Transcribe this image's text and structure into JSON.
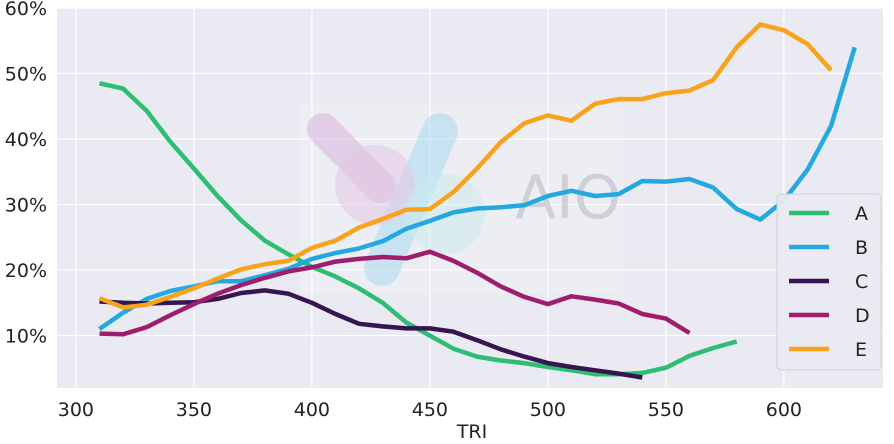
{
  "chart_data": {
    "type": "line",
    "title": "",
    "xlabel": "TRI",
    "ylabel": "",
    "xlim": [
      292,
      642
    ],
    "ylim": [
      0.02,
      0.6
    ],
    "x_ticks": [
      300,
      350,
      400,
      450,
      500,
      550,
      600
    ],
    "x_tick_labels": [
      "300",
      "350",
      "400",
      "450",
      "500",
      "550",
      "600"
    ],
    "y_ticks": [
      0.1,
      0.2,
      0.3,
      0.4,
      0.5,
      0.6
    ],
    "y_tick_labels": [
      "10%",
      "20%",
      "30%",
      "40%",
      "50%",
      "60%"
    ],
    "grid": true,
    "background_color": "#eaeaf2",
    "legend_position": "right",
    "watermark": "AIO",
    "series": [
      {
        "name": "A",
        "color": "#2ebd72",
        "x": [
          310,
          320,
          330,
          340,
          350,
          360,
          370,
          380,
          390,
          400,
          410,
          420,
          430,
          440,
          450,
          460,
          470,
          480,
          490,
          500,
          510,
          520,
          530,
          540,
          550,
          560,
          570,
          580
        ],
        "y": [
          0.485,
          0.477,
          0.443,
          0.396,
          0.355,
          0.313,
          0.276,
          0.245,
          0.224,
          0.205,
          0.19,
          0.172,
          0.15,
          0.12,
          0.1,
          0.08,
          0.068,
          0.062,
          0.058,
          0.052,
          0.047,
          0.041,
          0.041,
          0.043,
          0.051,
          0.069,
          0.081,
          0.091
        ]
      },
      {
        "name": "B",
        "color": "#24a8e0",
        "x": [
          310,
          320,
          330,
          340,
          350,
          360,
          370,
          380,
          390,
          400,
          410,
          420,
          430,
          440,
          450,
          460,
          470,
          480,
          490,
          500,
          510,
          520,
          530,
          540,
          550,
          560,
          570,
          580,
          590,
          600,
          610,
          620,
          630
        ],
        "y": [
          0.11,
          0.135,
          0.156,
          0.168,
          0.175,
          0.183,
          0.183,
          0.192,
          0.202,
          0.217,
          0.226,
          0.233,
          0.244,
          0.263,
          0.275,
          0.288,
          0.294,
          0.296,
          0.299,
          0.313,
          0.321,
          0.313,
          0.316,
          0.336,
          0.335,
          0.339,
          0.326,
          0.293,
          0.277,
          0.306,
          0.353,
          0.42,
          0.54
        ]
      },
      {
        "name": "C",
        "color": "#361551",
        "x": [
          310,
          320,
          330,
          340,
          350,
          360,
          370,
          380,
          390,
          400,
          410,
          420,
          430,
          440,
          450,
          460,
          470,
          480,
          490,
          500,
          510,
          520,
          530,
          540
        ],
        "y": [
          0.152,
          0.15,
          0.149,
          0.15,
          0.151,
          0.156,
          0.165,
          0.169,
          0.164,
          0.15,
          0.133,
          0.118,
          0.114,
          0.111,
          0.111,
          0.106,
          0.093,
          0.079,
          0.068,
          0.058,
          0.052,
          0.047,
          0.042,
          0.036
        ]
      },
      {
        "name": "D",
        "color": "#9e1e6d",
        "x": [
          310,
          320,
          330,
          340,
          350,
          360,
          370,
          380,
          390,
          400,
          410,
          420,
          430,
          440,
          450,
          460,
          470,
          480,
          490,
          500,
          510,
          520,
          530,
          540,
          550,
          560
        ],
        "y": [
          0.103,
          0.102,
          0.113,
          0.131,
          0.148,
          0.164,
          0.177,
          0.188,
          0.198,
          0.204,
          0.213,
          0.217,
          0.22,
          0.218,
          0.228,
          0.214,
          0.196,
          0.175,
          0.159,
          0.148,
          0.16,
          0.155,
          0.149,
          0.133,
          0.126,
          0.104
        ]
      },
      {
        "name": "E",
        "color": "#f9a21b",
        "x": [
          310,
          320,
          330,
          340,
          350,
          360,
          370,
          380,
          390,
          400,
          410,
          420,
          430,
          440,
          450,
          460,
          470,
          480,
          490,
          500,
          510,
          520,
          530,
          540,
          550,
          560,
          570,
          580,
          590,
          600,
          610,
          620
        ],
        "y": [
          0.157,
          0.143,
          0.147,
          0.159,
          0.172,
          0.187,
          0.201,
          0.209,
          0.214,
          0.234,
          0.245,
          0.265,
          0.278,
          0.292,
          0.293,
          0.319,
          0.355,
          0.395,
          0.424,
          0.436,
          0.428,
          0.454,
          0.461,
          0.461,
          0.47,
          0.474,
          0.49,
          0.54,
          0.575,
          0.566,
          0.545,
          0.505
        ]
      }
    ]
  }
}
